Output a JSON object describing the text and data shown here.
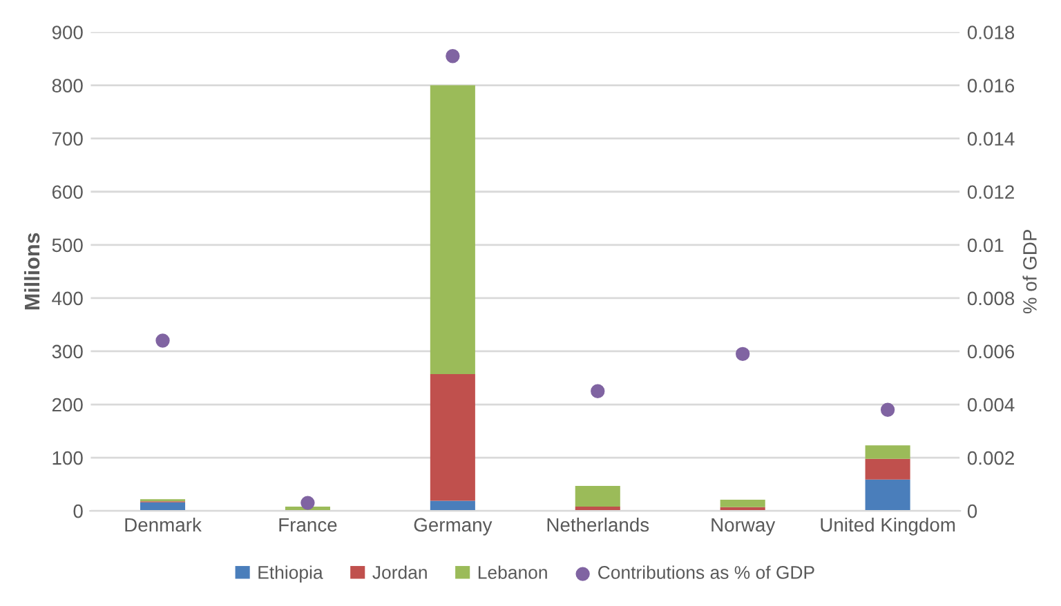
{
  "chart_data": {
    "type": "bar",
    "stacked": true,
    "categories": [
      "Denmark",
      "France",
      "Germany",
      "Netherlands",
      "Norway",
      "United Kingdom"
    ],
    "series": [
      {
        "name": "Ethiopia",
        "color": "#4a7ebb",
        "values": [
          16,
          0,
          19,
          0,
          0,
          59
        ]
      },
      {
        "name": "Jordan",
        "color": "#c0504d",
        "values": [
          2,
          1,
          238,
          8,
          7,
          39
        ]
      },
      {
        "name": "Lebanon",
        "color": "#9bbb59",
        "values": [
          4,
          7,
          543,
          39,
          14,
          25
        ]
      },
      {
        "name": "Contributions as % of GDP",
        "type": "scatter",
        "axis": "y2",
        "marker": "circle",
        "color": "#8064a2",
        "values": [
          0.0064,
          0.0003,
          0.0171,
          0.0045,
          0.0059,
          0.0038
        ]
      }
    ],
    "ylabel": "Millions",
    "y2label": "% of GDP",
    "ylim": [
      0,
      900
    ],
    "yticks": [
      0,
      100,
      200,
      300,
      400,
      500,
      600,
      700,
      800,
      900
    ],
    "y2lim": [
      0,
      0.018
    ],
    "y2ticks": [
      {
        "value": 0,
        "label": "0"
      },
      0.002,
      0.004,
      0.006,
      0.008,
      0.01,
      0.012,
      0.014,
      0.016,
      0.018
    ],
    "grid": "y",
    "legend": "bottom"
  }
}
